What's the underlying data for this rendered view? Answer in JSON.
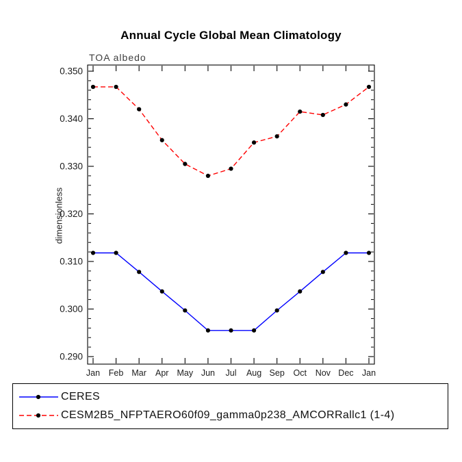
{
  "title": "Annual Cycle Global Mean Climatology",
  "subtitle": "TOA albedo",
  "chart_data": {
    "type": "line",
    "title": "Annual Cycle Global Mean Climatology",
    "subtitle_left": "TOA albedo",
    "ylabel": "dimensionless",
    "xlabel": "",
    "ylim": [
      0.29,
      0.35
    ],
    "yticks": [
      0.29,
      0.3,
      0.31,
      0.32,
      0.33,
      0.34,
      0.35
    ],
    "ytick_decimals": 3,
    "minor_tick_step": 0.002,
    "grid": false,
    "legend_position": "bottom",
    "categories": [
      "Jan",
      "Feb",
      "Mar",
      "Apr",
      "May",
      "Jun",
      "Jul",
      "Aug",
      "Sep",
      "Oct",
      "Nov",
      "Dec",
      "Jan"
    ],
    "series": [
      {
        "name": "CERES",
        "color": "#0000ff",
        "dashed": false,
        "marker": "circle",
        "marker_color": "#000000",
        "values": [
          0.3118,
          0.3118,
          0.3078,
          0.3037,
          0.2997,
          0.2955,
          0.2955,
          0.2955,
          0.2997,
          0.3037,
          0.3078,
          0.3118,
          0.3118
        ]
      },
      {
        "name": "CESM2B5_NFPTAERO60f09_gamma0p238_AMCORRallc1 (1-4)",
        "color": "#ff0000",
        "dashed": true,
        "marker": "circle",
        "marker_color": "#000000",
        "values": [
          0.3467,
          0.3467,
          0.342,
          0.3355,
          0.3305,
          0.328,
          0.3295,
          0.335,
          0.3363,
          0.3415,
          0.3408,
          0.343,
          0.3467
        ]
      }
    ]
  },
  "legend": {
    "items": [
      {
        "label": "CERES",
        "color": "#0000ff",
        "dashed": false
      },
      {
        "label": "CESM2B5_NFPTAERO60f09_gamma0p238_AMCORRallc1 (1-4)",
        "color": "#ff0000",
        "dashed": true
      }
    ]
  }
}
